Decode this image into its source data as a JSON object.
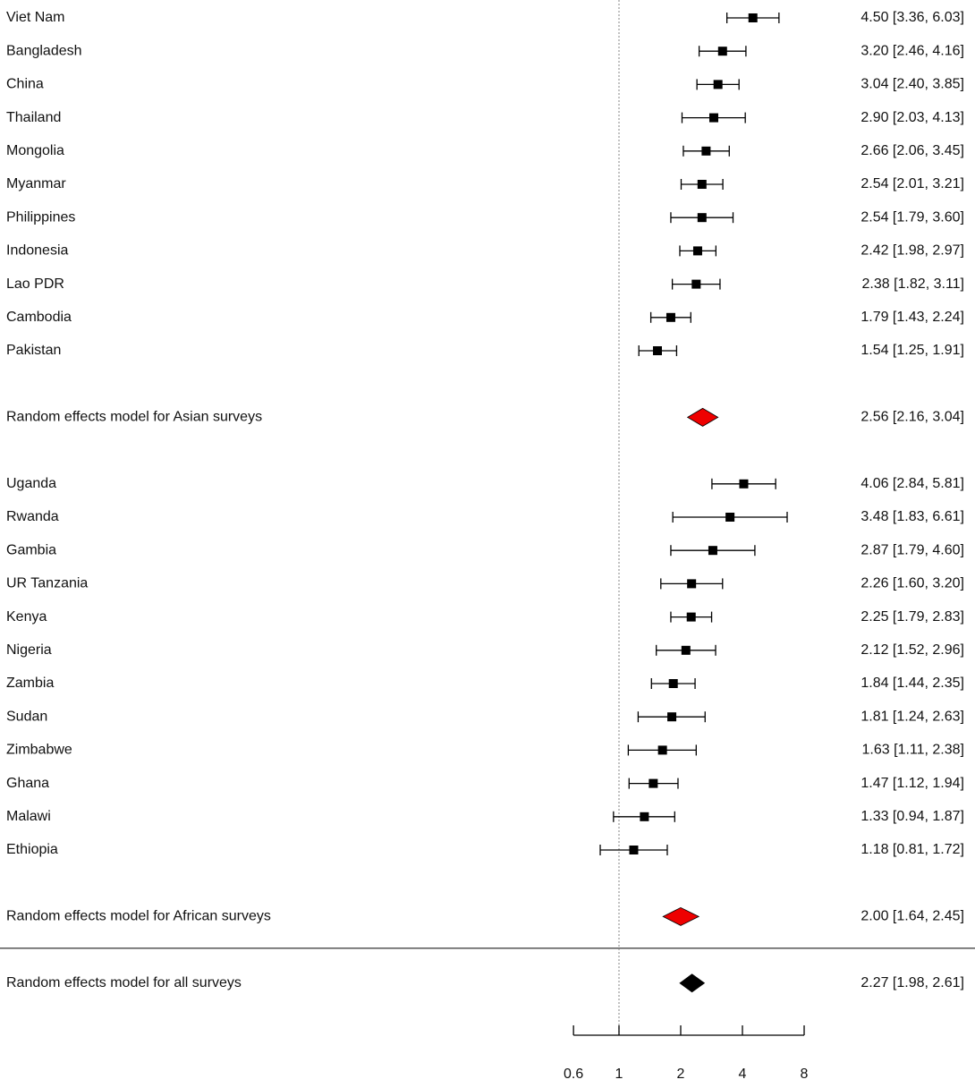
{
  "chart_data": {
    "type": "forest",
    "x_scale": "log",
    "xlim": [
      0.6,
      8
    ],
    "x_ticks": [
      "0.6",
      "1",
      "2",
      "4",
      "8"
    ],
    "reference_line": 1,
    "grid": false,
    "legend": "none",
    "colors": {
      "study": "#000000",
      "subgroup_summary": "#ee0000",
      "overall_summary": "#000000",
      "reference_line": "#999999",
      "divider": "#555555"
    },
    "groups": [
      {
        "studies": [
          {
            "label": "Viet Nam",
            "est": 4.5,
            "lower": 3.36,
            "upper": 6.03,
            "text": "4.50 [3.36, 6.03]"
          },
          {
            "label": "Bangladesh",
            "est": 3.2,
            "lower": 2.46,
            "upper": 4.16,
            "text": "3.20 [2.46, 4.16]"
          },
          {
            "label": "China",
            "est": 3.04,
            "lower": 2.4,
            "upper": 3.85,
            "text": "3.04 [2.40, 3.85]"
          },
          {
            "label": "Thailand",
            "est": 2.9,
            "lower": 2.03,
            "upper": 4.13,
            "text": "2.90 [2.03, 4.13]"
          },
          {
            "label": "Mongolia",
            "est": 2.66,
            "lower": 2.06,
            "upper": 3.45,
            "text": "2.66 [2.06, 3.45]"
          },
          {
            "label": "Myanmar",
            "est": 2.54,
            "lower": 2.01,
            "upper": 3.21,
            "text": "2.54 [2.01, 3.21]"
          },
          {
            "label": "Philippines",
            "est": 2.54,
            "lower": 1.79,
            "upper": 3.6,
            "text": "2.54 [1.79, 3.60]"
          },
          {
            "label": "Indonesia",
            "est": 2.42,
            "lower": 1.98,
            "upper": 2.97,
            "text": "2.42 [1.98, 2.97]"
          },
          {
            "label": "Lao PDR",
            "est": 2.38,
            "lower": 1.82,
            "upper": 3.11,
            "text": "2.38 [1.82, 3.11]"
          },
          {
            "label": "Cambodia",
            "est": 1.79,
            "lower": 1.43,
            "upper": 2.24,
            "text": "1.79 [1.43, 2.24]"
          },
          {
            "label": "Pakistan",
            "est": 1.54,
            "lower": 1.25,
            "upper": 1.91,
            "text": "1.54 [1.25, 1.91]"
          }
        ],
        "summary": {
          "label": "Random effects model for Asian surveys",
          "est": 2.56,
          "lower": 2.16,
          "upper": 3.04,
          "text": "2.56 [2.16, 3.04]"
        }
      },
      {
        "studies": [
          {
            "label": "Uganda",
            "est": 4.06,
            "lower": 2.84,
            "upper": 5.81,
            "text": "4.06 [2.84, 5.81]"
          },
          {
            "label": "Rwanda",
            "est": 3.48,
            "lower": 1.83,
            "upper": 6.61,
            "text": "3.48 [1.83, 6.61]"
          },
          {
            "label": "Gambia",
            "est": 2.87,
            "lower": 1.79,
            "upper": 4.6,
            "text": "2.87 [1.79, 4.60]"
          },
          {
            "label": "UR Tanzania",
            "est": 2.26,
            "lower": 1.6,
            "upper": 3.2,
            "text": "2.26 [1.60, 3.20]"
          },
          {
            "label": "Kenya",
            "est": 2.25,
            "lower": 1.79,
            "upper": 2.83,
            "text": "2.25 [1.79, 2.83]"
          },
          {
            "label": "Nigeria",
            "est": 2.12,
            "lower": 1.52,
            "upper": 2.96,
            "text": "2.12 [1.52, 2.96]"
          },
          {
            "label": "Zambia",
            "est": 1.84,
            "lower": 1.44,
            "upper": 2.35,
            "text": "1.84 [1.44, 2.35]"
          },
          {
            "label": "Sudan",
            "est": 1.81,
            "lower": 1.24,
            "upper": 2.63,
            "text": "1.81 [1.24, 2.63]"
          },
          {
            "label": "Zimbabwe",
            "est": 1.63,
            "lower": 1.11,
            "upper": 2.38,
            "text": "1.63 [1.11, 2.38]"
          },
          {
            "label": "Ghana",
            "est": 1.47,
            "lower": 1.12,
            "upper": 1.94,
            "text": "1.47 [1.12, 1.94]"
          },
          {
            "label": "Malawi",
            "est": 1.33,
            "lower": 0.94,
            "upper": 1.87,
            "text": "1.33 [0.94, 1.87]"
          },
          {
            "label": "Ethiopia",
            "est": 1.18,
            "lower": 0.81,
            "upper": 1.72,
            "text": "1.18 [0.81, 1.72]"
          }
        ],
        "summary": {
          "label": "Random effects model for African surveys",
          "est": 2.0,
          "lower": 1.64,
          "upper": 2.45,
          "text": "2.00 [1.64, 2.45]"
        }
      }
    ],
    "overall": {
      "label": "Random effects model for all surveys",
      "est": 2.27,
      "lower": 1.98,
      "upper": 2.61,
      "text": "2.27 [1.98, 2.61]"
    }
  }
}
